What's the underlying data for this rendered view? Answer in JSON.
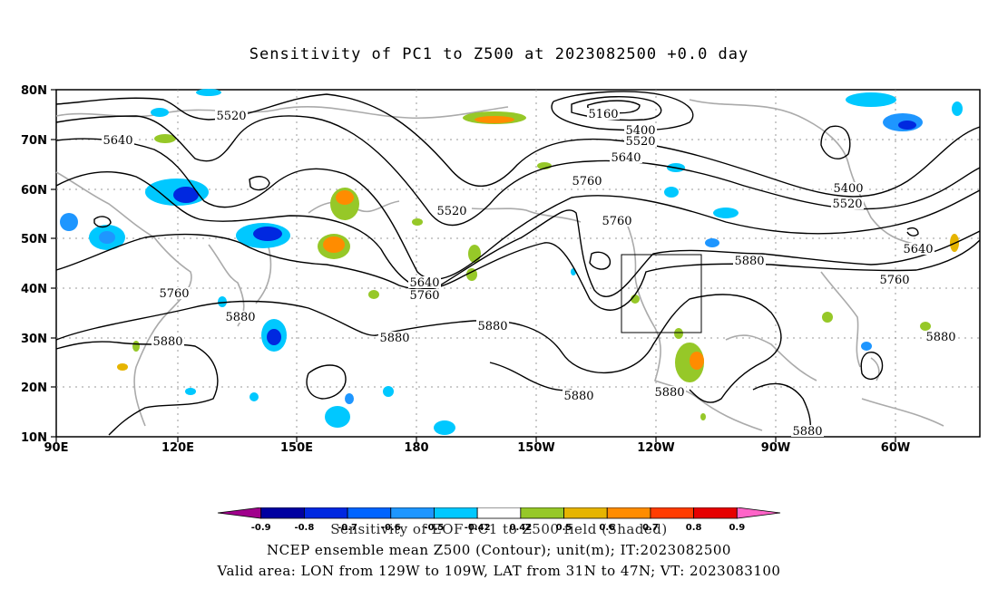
{
  "title": "Sensitivity of PC1 to Z500 at 2023082500 +0.0 day",
  "lat_labels": [
    "80N",
    "70N",
    "60N",
    "50N",
    "40N",
    "30N",
    "20N",
    "10N"
  ],
  "lon_labels": [
    "90E",
    "120E",
    "150E",
    "180",
    "150W",
    "120W",
    "90W",
    "60W"
  ],
  "contour_labels": [
    "5520",
    "5640",
    "5160",
    "5400",
    "5520",
    "5640",
    "5760",
    "5520",
    "5760",
    "5400",
    "5520",
    "5640",
    "5760",
    "5880",
    "5760",
    "5880",
    "5880",
    "5640",
    "5760",
    "5880",
    "5880",
    "5880",
    "5880",
    "5880",
    "5880"
  ],
  "colorbar": {
    "tick_labels": [
      "-0.9",
      "-0.8",
      "-0.7",
      "-0.6",
      "-0.5",
      "-0.42",
      "0.42",
      "0.5",
      "0.6",
      "0.7",
      "0.8",
      "0.9"
    ],
    "colors": [
      "#a0008c",
      "#0000a0",
      "#0028e0",
      "#0064ff",
      "#1e96ff",
      "#00c8ff",
      "#ffffff",
      "#96c828",
      "#e6b400",
      "#ff8c00",
      "#ff3c00",
      "#e60000",
      "#ff64c8"
    ]
  },
  "footer": {
    "line1": "Sensitivity of EOF PC1 to Z500 field (Shaded)",
    "line2": "NCEP ensemble mean Z500 (Contour); unit(m); IT:2023082500",
    "line3": "Valid area: LON from 129W to 109W, LAT from 31N to 47N; VT: 2023083100"
  }
}
